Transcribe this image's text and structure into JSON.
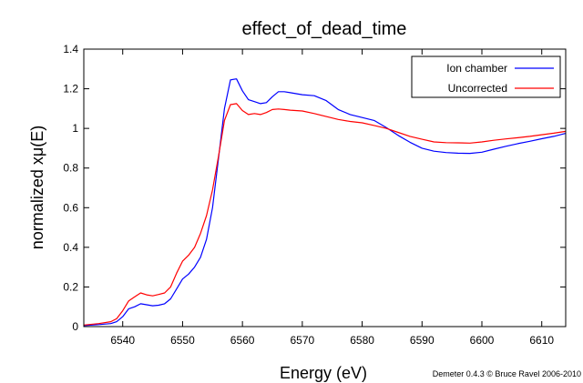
{
  "chart_data": {
    "type": "line",
    "title": "effect_of_dead_time",
    "xlabel": "Energy    (eV)",
    "ylabel": "normalized xμ(E)",
    "credit": "Demeter 0.4.3 © Bruce Ravel 2006-2010",
    "xlim": [
      6533.5,
      6614
    ],
    "ylim": [
      0,
      1.4
    ],
    "xticks": [
      "6540",
      "6550",
      "6560",
      "6570",
      "6580",
      "6590",
      "6600",
      "6610"
    ],
    "yticks": [
      "0",
      "0.2",
      "0.4",
      "0.6",
      "0.8",
      "1",
      "1.2",
      "1.4"
    ],
    "grid": false,
    "legend_position": "top-right",
    "series": [
      {
        "name": "Ion chamber",
        "color": "#0000ff",
        "x": [
          6533.5,
          6536,
          6538,
          6539,
          6540,
          6541,
          6542,
          6543,
          6544,
          6545,
          6546,
          6547,
          6548,
          6549,
          6550,
          6551,
          6552,
          6553,
          6554,
          6555,
          6556,
          6557,
          6558,
          6559,
          6560,
          6561,
          6562,
          6563,
          6564,
          6565,
          6566,
          6567,
          6568,
          6570,
          6572,
          6574,
          6576,
          6578,
          6580,
          6582,
          6584,
          6586,
          6588,
          6590,
          6592,
          6594,
          6596,
          6598,
          6600,
          6602,
          6604,
          6606,
          6608,
          6610,
          6612,
          6614
        ],
        "y": [
          0.005,
          0.01,
          0.015,
          0.025,
          0.05,
          0.09,
          0.1,
          0.115,
          0.11,
          0.105,
          0.108,
          0.115,
          0.14,
          0.19,
          0.24,
          0.265,
          0.3,
          0.35,
          0.44,
          0.6,
          0.85,
          1.1,
          1.245,
          1.25,
          1.19,
          1.145,
          1.135,
          1.125,
          1.13,
          1.16,
          1.185,
          1.185,
          1.18,
          1.17,
          1.165,
          1.14,
          1.095,
          1.07,
          1.055,
          1.04,
          1.005,
          0.965,
          0.93,
          0.9,
          0.885,
          0.878,
          0.875,
          0.874,
          0.88,
          0.895,
          0.91,
          0.923,
          0.935,
          0.948,
          0.96,
          0.975
        ]
      },
      {
        "name": "Uncorrected",
        "color": "#ff0000",
        "x": [
          6533.5,
          6536,
          6538,
          6539,
          6540,
          6541,
          6542,
          6543,
          6544,
          6545,
          6546,
          6547,
          6548,
          6549,
          6550,
          6551,
          6552,
          6553,
          6554,
          6555,
          6556,
          6557,
          6558,
          6559,
          6560,
          6561,
          6562,
          6563,
          6564,
          6565,
          6566,
          6567,
          6568,
          6570,
          6572,
          6574,
          6576,
          6578,
          6580,
          6582,
          6584,
          6586,
          6588,
          6590,
          6592,
          6594,
          6596,
          6598,
          6600,
          6602,
          6604,
          6606,
          6608,
          6610,
          6612,
          6614
        ],
        "y": [
          0.008,
          0.015,
          0.025,
          0.04,
          0.08,
          0.13,
          0.15,
          0.17,
          0.16,
          0.155,
          0.162,
          0.17,
          0.2,
          0.27,
          0.33,
          0.36,
          0.4,
          0.47,
          0.56,
          0.69,
          0.86,
          1.04,
          1.12,
          1.125,
          1.09,
          1.07,
          1.075,
          1.07,
          1.08,
          1.095,
          1.098,
          1.095,
          1.092,
          1.088,
          1.075,
          1.06,
          1.045,
          1.035,
          1.028,
          1.015,
          1.0,
          0.98,
          0.96,
          0.945,
          0.932,
          0.928,
          0.927,
          0.926,
          0.932,
          0.94,
          0.947,
          0.953,
          0.96,
          0.968,
          0.976,
          0.985
        ]
      }
    ]
  }
}
